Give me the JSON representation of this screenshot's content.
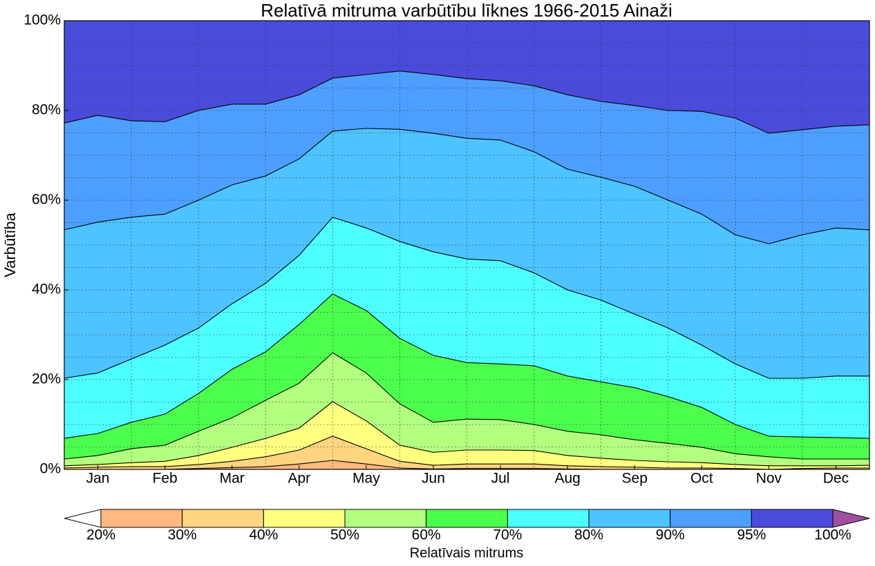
{
  "chart_data": {
    "type": "probability-area",
    "title": "Relatīvā mitruma varbūtību līknes 1966-2015 Ainaži",
    "y_label": "Varbūtība",
    "x": [
      0,
      0.5,
      1,
      1.5,
      2,
      2.5,
      3,
      3.5,
      4,
      4.5,
      5,
      5.5,
      6,
      6.5,
      7,
      7.5,
      8,
      8.5,
      9,
      9.5,
      10,
      10.5,
      11,
      11.5,
      12
    ],
    "xlim": [
      0,
      12
    ],
    "xticks": [
      {
        "value": 0.5,
        "label": "Jan"
      },
      {
        "value": 1.5,
        "label": "Feb"
      },
      {
        "value": 2.5,
        "label": "Mar"
      },
      {
        "value": 3.5,
        "label": "Apr"
      },
      {
        "value": 4.5,
        "label": "May"
      },
      {
        "value": 5.5,
        "label": "Jun"
      },
      {
        "value": 6.5,
        "label": "Jul"
      },
      {
        "value": 7.5,
        "label": "Aug"
      },
      {
        "value": 8.5,
        "label": "Sep"
      },
      {
        "value": 9.5,
        "label": "Oct"
      },
      {
        "value": 10.5,
        "label": "Nov"
      },
      {
        "value": 11.5,
        "label": "Dec"
      }
    ],
    "xgrid": [
      1,
      2,
      3,
      4,
      5,
      6,
      7,
      8,
      9,
      10,
      11
    ],
    "ylim": [
      0,
      100
    ],
    "yticks": [
      {
        "value": 0,
        "label": "0%"
      },
      {
        "value": 20,
        "label": "20%"
      },
      {
        "value": 40,
        "label": "40%"
      },
      {
        "value": 60,
        "label": "60%"
      },
      {
        "value": 80,
        "label": "80%"
      },
      {
        "value": 100,
        "label": "100%"
      }
    ],
    "ygrid": [
      5,
      10,
      15,
      20,
      25,
      30,
      35,
      40,
      45,
      50,
      55,
      60,
      65,
      70,
      75,
      80,
      85,
      90,
      95
    ],
    "grid": true,
    "top_color": "#4b4bdb",
    "series": [
      {
        "color": "#4d9fff",
        "values": [
          77.2,
          78.9,
          77.7,
          77.5,
          80.0,
          81.4,
          81.4,
          83.5,
          87.2,
          88.0,
          88.8,
          88.0,
          87.1,
          86.6,
          85.5,
          83.5,
          82.0,
          81.1,
          80.0,
          79.8,
          78.3,
          74.9,
          75.7,
          76.5,
          76.8
        ]
      },
      {
        "color": "#4dc3ff",
        "values": [
          53.4,
          55.1,
          56.2,
          56.9,
          60.0,
          63.4,
          65.4,
          69.2,
          75.4,
          76.0,
          75.8,
          74.9,
          73.8,
          73.4,
          70.8,
          66.9,
          65.1,
          63.1,
          60.0,
          56.9,
          52.3,
          50.3,
          52.3,
          53.8,
          53.4
        ]
      },
      {
        "color": "#4dffff",
        "values": [
          20.3,
          21.5,
          24.6,
          27.7,
          31.5,
          36.9,
          41.5,
          47.7,
          56.2,
          53.8,
          50.8,
          48.5,
          46.9,
          46.5,
          43.8,
          40.0,
          37.7,
          34.6,
          31.5,
          27.7,
          23.5,
          20.3,
          20.3,
          20.8,
          20.8
        ]
      },
      {
        "color": "#4dff4d",
        "values": [
          6.9,
          8.0,
          10.5,
          12.3,
          16.9,
          22.3,
          26.2,
          32.3,
          39.1,
          35.4,
          29.2,
          25.4,
          23.8,
          23.5,
          23.1,
          20.8,
          19.5,
          18.2,
          16.2,
          13.8,
          10.0,
          7.4,
          7.2,
          7.1,
          6.9
        ]
      },
      {
        "color": "#b3ff80",
        "values": [
          2.3,
          3.1,
          4.6,
          5.4,
          8.5,
          11.5,
          15.4,
          19.2,
          26.0,
          21.5,
          14.6,
          10.5,
          11.2,
          11.1,
          10.0,
          8.5,
          7.7,
          6.6,
          5.8,
          4.9,
          3.5,
          2.8,
          2.3,
          2.3,
          2.3
        ]
      },
      {
        "color": "#ffff80",
        "values": [
          0.8,
          1.1,
          1.5,
          1.8,
          3.1,
          4.9,
          6.9,
          9.2,
          15.1,
          10.8,
          5.4,
          3.8,
          4.3,
          4.3,
          4.2,
          3.1,
          2.5,
          2.0,
          1.7,
          1.5,
          1.1,
          0.8,
          0.8,
          0.8,
          0.9
        ]
      },
      {
        "color": "#ffd580",
        "values": [
          0.3,
          0.5,
          0.6,
          0.6,
          1.1,
          1.8,
          2.8,
          4.3,
          7.4,
          4.6,
          1.8,
          0.9,
          1.2,
          1.2,
          1.2,
          0.8,
          0.6,
          0.5,
          0.3,
          0.3,
          0.2,
          0,
          0.2,
          0.3,
          0.3
        ]
      },
      {
        "color": "#ffb880",
        "values": [
          0,
          0,
          0,
          0,
          0.2,
          0.4,
          0.6,
          1.2,
          2.0,
          1.2,
          0.3,
          0.1,
          0.2,
          0.2,
          0.2,
          0.1,
          0,
          0,
          0,
          0,
          0,
          0,
          0,
          0,
          0
        ]
      }
    ],
    "colorbar": {
      "label": "Relatīvais mitrums",
      "labels": [
        "20%",
        "30%",
        "40%",
        "50%",
        "60%",
        "70%",
        "80%",
        "90%",
        "95%",
        "100%"
      ],
      "colors": [
        "#ffb880",
        "#ffd580",
        "#ffff80",
        "#b3ff80",
        "#4dff4d",
        "#4dffff",
        "#4dc3ff",
        "#4d9fff",
        "#4b4bdb"
      ],
      "under_color": "#ffffff",
      "over_color": "#a050a0"
    }
  }
}
